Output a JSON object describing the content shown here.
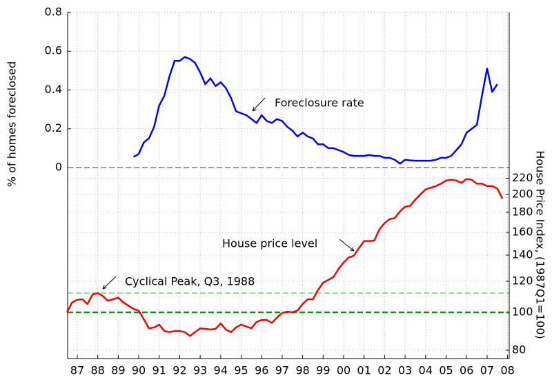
{
  "chart_data": {
    "type": "line",
    "ylabel": "% of homes foreclosed",
    "y2label": "House Price Index, (1987Q1=100)",
    "xlim": [
      1986.53,
      2008.08
    ],
    "xticks": [
      {
        "value": 1987,
        "label": "87"
      },
      {
        "value": 1988,
        "label": "88"
      },
      {
        "value": 1989,
        "label": "89"
      },
      {
        "value": 1990,
        "label": "90"
      },
      {
        "value": 1991,
        "label": "91"
      },
      {
        "value": 1992,
        "label": "92"
      },
      {
        "value": 1993,
        "label": "93"
      },
      {
        "value": 1994,
        "label": "94"
      },
      {
        "value": 1995,
        "label": "95"
      },
      {
        "value": 1996,
        "label": "96"
      },
      {
        "value": 1997,
        "label": "97"
      },
      {
        "value": 1998,
        "label": "98"
      },
      {
        "value": 1999,
        "label": "99"
      },
      {
        "value": 2000,
        "label": "00"
      },
      {
        "value": 2001,
        "label": "01"
      },
      {
        "value": 2002,
        "label": "02"
      },
      {
        "value": 2003,
        "label": "03"
      },
      {
        "value": 2004,
        "label": "04"
      },
      {
        "value": 2005,
        "label": "05"
      },
      {
        "value": 2006,
        "label": "06"
      },
      {
        "value": 2007,
        "label": "07"
      },
      {
        "value": 2008,
        "label": "08"
      }
    ],
    "ylim": [
      -0.985,
      0.8
    ],
    "yticks": [
      0,
      0.2,
      0.4,
      0.6,
      0.8
    ],
    "y2lim": [
      76.2,
      583
    ],
    "y2scale": "log",
    "y2ticks": [
      80,
      100,
      120,
      140,
      160,
      180,
      200,
      220
    ],
    "grid": true,
    "x": [
      1986.5,
      1986.75,
      1987,
      1987.25,
      1987.5,
      1987.75,
      1988,
      1988.25,
      1988.5,
      1988.75,
      1989,
      1989.25,
      1989.5,
      1989.75,
      1990,
      1990.25,
      1990.5,
      1990.75,
      1991,
      1991.25,
      1991.5,
      1991.75,
      1992,
      1992.25,
      1992.5,
      1992.75,
      1993,
      1993.25,
      1993.5,
      1993.75,
      1994,
      1994.25,
      1994.5,
      1994.75,
      1995,
      1995.25,
      1995.5,
      1995.75,
      1996,
      1996.25,
      1996.5,
      1996.75,
      1997,
      1997.25,
      1997.5,
      1997.75,
      1998,
      1998.25,
      1998.5,
      1998.75,
      1999,
      1999.25,
      1999.5,
      1999.75,
      2000,
      2000.25,
      2000.5,
      2000.75,
      2001,
      2001.25,
      2001.5,
      2001.75,
      2002,
      2002.25,
      2002.5,
      2002.75,
      2003,
      2003.25,
      2003.5,
      2003.75,
      2004,
      2004.25,
      2004.5,
      2004.75,
      2005,
      2005.25,
      2005.5,
      2005.75,
      2006,
      2006.25,
      2006.5,
      2006.75,
      2007,
      2007.25,
      2007.5,
      2007.75
    ],
    "series": [
      {
        "name": "Foreclosure rate",
        "color": "#0000ee",
        "axis": "y",
        "values": [
          null,
          null,
          null,
          null,
          null,
          null,
          null,
          null,
          null,
          null,
          null,
          null,
          null,
          0.055,
          0.07,
          0.13,
          0.15,
          0.21,
          0.32,
          0.37,
          0.47,
          0.55,
          0.55,
          0.57,
          0.56,
          0.54,
          0.49,
          0.43,
          0.46,
          0.42,
          0.44,
          0.41,
          0.36,
          0.29,
          0.28,
          0.27,
          0.25,
          0.23,
          0.27,
          0.24,
          0.23,
          0.25,
          0.24,
          0.21,
          0.19,
          0.16,
          0.18,
          0.16,
          0.15,
          0.12,
          0.12,
          0.1,
          0.1,
          0.09,
          0.08,
          0.065,
          0.06,
          0.06,
          0.06,
          0.065,
          0.06,
          0.06,
          0.05,
          0.05,
          0.04,
          0.02,
          0.04,
          0.037,
          0.035,
          0.035,
          0.035,
          0.035,
          0.04,
          0.05,
          0.05,
          0.06,
          0.09,
          0.12,
          0.18,
          0.2,
          0.22,
          0.37,
          0.51,
          0.39,
          0.43,
          null
        ]
      },
      {
        "name": "House price level",
        "color": "#ee0000",
        "axis": "y2",
        "values": [
          100,
          106,
          107.6,
          108,
          105,
          111,
          112,
          110,
          107,
          108,
          109,
          106,
          104,
          102,
          101,
          96,
          91,
          91.5,
          93,
          89.6,
          89,
          89.6,
          89.6,
          89,
          87,
          89,
          91,
          90.7,
          90.4,
          90.7,
          93.7,
          90.4,
          89,
          91.5,
          93,
          92,
          91,
          94.5,
          95.6,
          95.6,
          94,
          97,
          99.6,
          100.4,
          100,
          101,
          105,
          108,
          108,
          114,
          119,
          121,
          123,
          129,
          134,
          138,
          139.5,
          146,
          152,
          152,
          152.5,
          163,
          169,
          173,
          174,
          181,
          186,
          187,
          194,
          200,
          206,
          208,
          210,
          213,
          217,
          218,
          217,
          214,
          219,
          218,
          213,
          213,
          210,
          210,
          207,
          195
        ]
      }
    ],
    "hlines": [
      {
        "value": 0,
        "axis": "y",
        "color": "#333366",
        "linewidth": 1
      },
      {
        "value": 100,
        "axis": "y2",
        "color": "#009900",
        "linewidth": 2.5
      },
      {
        "value": 112,
        "axis": "y2",
        "color": "#009900",
        "linewidth": 0.8
      }
    ],
    "annotations": [
      {
        "text": "Foreclosure rate"
      },
      {
        "text": "House price level"
      },
      {
        "text": "Cyclical Peak, Q3, 1988"
      }
    ]
  }
}
